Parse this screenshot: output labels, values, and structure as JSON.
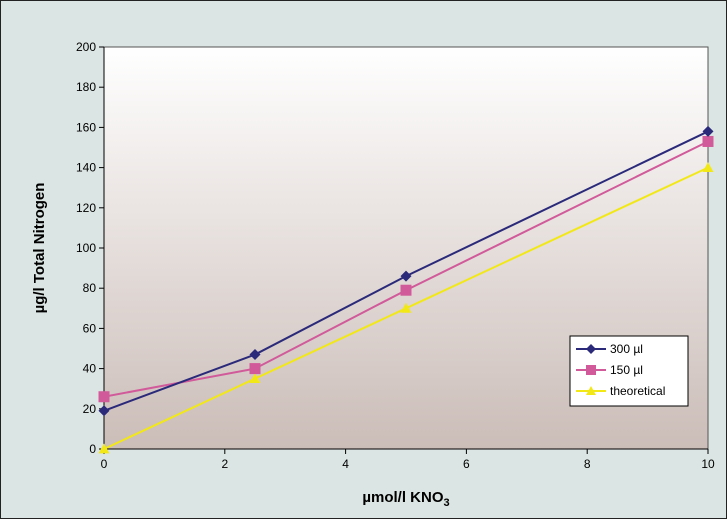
{
  "chart_data": {
    "type": "line",
    "title": "",
    "xlabel": "µmol/l KNO",
    "xlabel_subscript": "3",
    "ylabel": "µg/l Total Nitrogen",
    "xlim": [
      0,
      10
    ],
    "ylim": [
      0,
      200
    ],
    "xticks": [
      0,
      2,
      4,
      6,
      8,
      10
    ],
    "yticks": [
      0,
      20,
      40,
      60,
      80,
      100,
      120,
      140,
      160,
      180,
      200
    ],
    "grid": false,
    "legend_position": "bottom-right",
    "series": [
      {
        "name": "300 µl",
        "color": "#2b2a7a",
        "marker": "diamond",
        "points": [
          [
            0,
            19
          ],
          [
            2.5,
            47
          ],
          [
            5,
            86
          ],
          [
            10,
            158
          ]
        ]
      },
      {
        "name": "150 µl",
        "color": "#d15a9a",
        "marker": "square",
        "points": [
          [
            0,
            26
          ],
          [
            2.5,
            40
          ],
          [
            5,
            79
          ],
          [
            10,
            153
          ]
        ]
      },
      {
        "name": "theoretical",
        "color": "#f2e817",
        "marker": "triangle",
        "points": [
          [
            0,
            0
          ],
          [
            2.5,
            35
          ],
          [
            5,
            70
          ],
          [
            10,
            140
          ]
        ]
      }
    ]
  }
}
